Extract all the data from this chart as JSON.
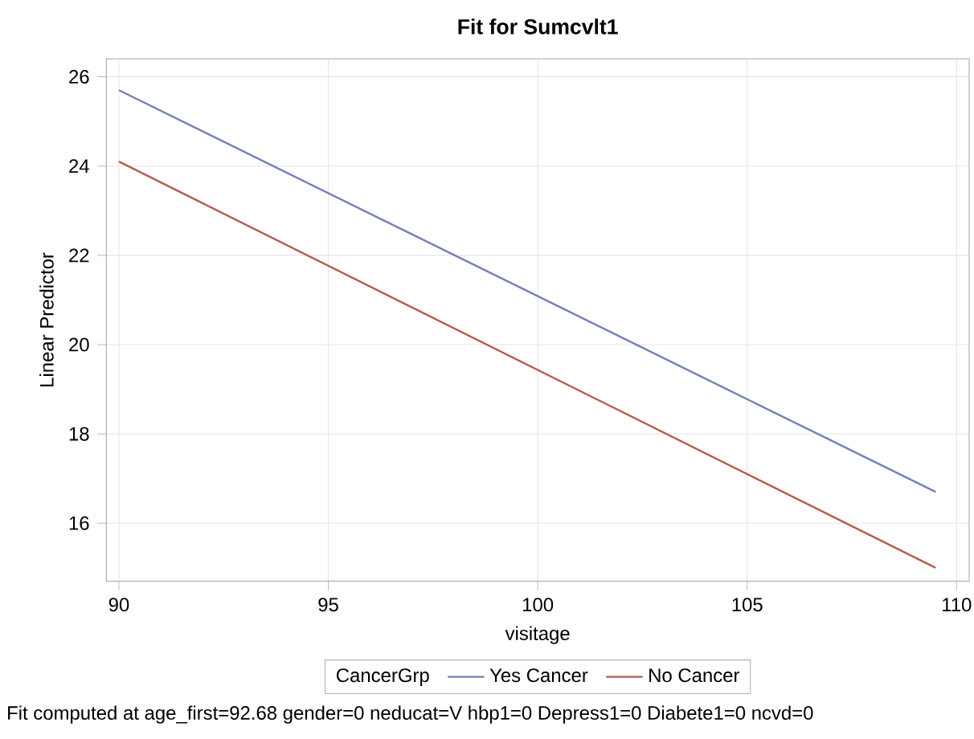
{
  "chart_data": {
    "type": "line",
    "title": "Fit for Sumcvlt1",
    "xlabel": "visitage",
    "ylabel": "Linear Predictor",
    "legend_title": "CancerGrp",
    "annotations": [
      "Fit computed at age_first=92.68 gender=0 neducat=V hbp1=0 Depress1=0 Diabete1=0 ncvd=0"
    ],
    "x": [
      90,
      109.5
    ],
    "series": [
      {
        "name": "Yes Cancer",
        "color": "#7480b8",
        "values": [
          25.7,
          16.7
        ]
      },
      {
        "name": "No Cancer",
        "color": "#b85a4e",
        "values": [
          24.1,
          15.0
        ]
      }
    ],
    "xlim": [
      89.7,
      110.3
    ],
    "ylim": [
      14.7,
      26.4
    ],
    "xticks": [
      90,
      95,
      100,
      105,
      110
    ],
    "yticks": [
      16,
      18,
      20,
      22,
      24,
      26
    ],
    "grid": true,
    "legend": "bottom",
    "marker": "none",
    "line_style": "solid"
  }
}
